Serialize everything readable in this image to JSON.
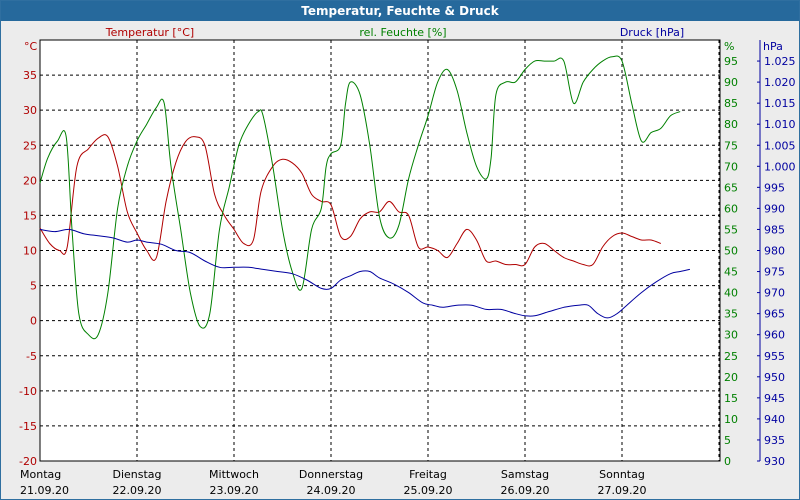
{
  "chart_data": {
    "type": "line",
    "title": "Temperatur, Feuchte & Druck",
    "x_categories": [
      {
        "day": "Montag",
        "date": "21.09.20"
      },
      {
        "day": "Dienstag",
        "date": "22.09.20"
      },
      {
        "day": "Mittwoch",
        "date": "23.09.20"
      },
      {
        "day": "Donnerstag",
        "date": "24.09.20"
      },
      {
        "day": "Freitag",
        "date": "25.09.20"
      },
      {
        "day": "Samstag",
        "date": "26.09.20"
      },
      {
        "day": "Sonntag",
        "date": "27.09.20"
      }
    ],
    "axes": {
      "temp": {
        "label": "Temperatur [°C]",
        "unit": "°C",
        "range": [
          -20,
          40
        ],
        "ticks": [
          -20,
          -15,
          -10,
          -5,
          0,
          5,
          10,
          15,
          20,
          25,
          30,
          35
        ],
        "color": "#b00000"
      },
      "hum": {
        "label": "rel. Feuchte [%]",
        "unit": "%",
        "range": [
          0,
          100
        ],
        "ticks": [
          0,
          5,
          10,
          15,
          20,
          25,
          30,
          35,
          40,
          45,
          50,
          55,
          60,
          65,
          70,
          75,
          80,
          85,
          90,
          95
        ],
        "color": "#008000"
      },
      "press": {
        "label": "Druck [hPa]",
        "unit": "hPa",
        "range": [
          930,
          1030
        ],
        "ticks": [
          930,
          935,
          940,
          945,
          950,
          955,
          960,
          965,
          970,
          975,
          980,
          985,
          990,
          995,
          1000,
          1005,
          1010,
          1015,
          1020,
          1025
        ],
        "color": "#0000a0"
      }
    },
    "grid": true,
    "series": [
      {
        "name": "Temperatur [°C]",
        "axis": "temp",
        "color": "#b00000",
        "points": [
          [
            0.0,
            13.2
          ],
          [
            0.1,
            11.0
          ],
          [
            0.2,
            10.0
          ],
          [
            0.28,
            10.5
          ],
          [
            0.38,
            22.0
          ],
          [
            0.5,
            24.5
          ],
          [
            0.6,
            26.0
          ],
          [
            0.7,
            26.2
          ],
          [
            0.8,
            22.0
          ],
          [
            0.9,
            15.5
          ],
          [
            1.0,
            12.5
          ],
          [
            1.1,
            10.0
          ],
          [
            1.2,
            9.0
          ],
          [
            1.3,
            17.0
          ],
          [
            1.4,
            22.5
          ],
          [
            1.5,
            25.5
          ],
          [
            1.6,
            26.2
          ],
          [
            1.7,
            25.0
          ],
          [
            1.8,
            18.0
          ],
          [
            1.9,
            15.0
          ],
          [
            2.0,
            13.0
          ],
          [
            2.1,
            11.0
          ],
          [
            2.2,
            11.5
          ],
          [
            2.28,
            18.5
          ],
          [
            2.4,
            22.0
          ],
          [
            2.5,
            23.0
          ],
          [
            2.6,
            22.5
          ],
          [
            2.7,
            21.0
          ],
          [
            2.8,
            18.0
          ],
          [
            2.9,
            17.0
          ],
          [
            3.0,
            16.5
          ],
          [
            3.1,
            12.0
          ],
          [
            3.2,
            12.0
          ],
          [
            3.3,
            14.5
          ],
          [
            3.4,
            15.5
          ],
          [
            3.5,
            15.5
          ],
          [
            3.6,
            17.0
          ],
          [
            3.7,
            15.5
          ],
          [
            3.8,
            15.0
          ],
          [
            3.9,
            10.5
          ],
          [
            4.0,
            10.5
          ],
          [
            4.1,
            10.0
          ],
          [
            4.2,
            9.0
          ],
          [
            4.3,
            11.0
          ],
          [
            4.4,
            13.0
          ],
          [
            4.5,
            11.5
          ],
          [
            4.6,
            8.5
          ],
          [
            4.7,
            8.5
          ],
          [
            4.8,
            8.0
          ],
          [
            4.9,
            8.0
          ],
          [
            5.0,
            8.0
          ],
          [
            5.1,
            10.5
          ],
          [
            5.2,
            11.0
          ],
          [
            5.3,
            10.0
          ],
          [
            5.4,
            9.0
          ],
          [
            5.5,
            8.5
          ],
          [
            5.6,
            8.0
          ],
          [
            5.7,
            8.0
          ],
          [
            5.8,
            10.5
          ],
          [
            5.9,
            12.0
          ],
          [
            6.0,
            12.5
          ],
          [
            6.1,
            12.0
          ],
          [
            6.2,
            11.5
          ],
          [
            6.3,
            11.5
          ],
          [
            6.4,
            11.0
          ]
        ]
      },
      {
        "name": "rel. Feuchte [%]",
        "axis": "hum",
        "color": "#008000",
        "points": [
          [
            0.0,
            66
          ],
          [
            0.08,
            72
          ],
          [
            0.18,
            76
          ],
          [
            0.27,
            77
          ],
          [
            0.33,
            55
          ],
          [
            0.4,
            35
          ],
          [
            0.5,
            30
          ],
          [
            0.6,
            30
          ],
          [
            0.7,
            40
          ],
          [
            0.8,
            60
          ],
          [
            0.9,
            70
          ],
          [
            1.0,
            76
          ],
          [
            1.1,
            80
          ],
          [
            1.2,
            84
          ],
          [
            1.28,
            85
          ],
          [
            1.35,
            70
          ],
          [
            1.45,
            55
          ],
          [
            1.55,
            40
          ],
          [
            1.65,
            32
          ],
          [
            1.75,
            35
          ],
          [
            1.85,
            55
          ],
          [
            1.95,
            65
          ],
          [
            2.05,
            75
          ],
          [
            2.15,
            80
          ],
          [
            2.25,
            83
          ],
          [
            2.3,
            82
          ],
          [
            2.4,
            70
          ],
          [
            2.5,
            55
          ],
          [
            2.6,
            45
          ],
          [
            2.7,
            41
          ],
          [
            2.8,
            55
          ],
          [
            2.9,
            60
          ],
          [
            2.95,
            70
          ],
          [
            3.0,
            73
          ],
          [
            3.1,
            75
          ],
          [
            3.15,
            85
          ],
          [
            3.2,
            90
          ],
          [
            3.3,
            87
          ],
          [
            3.4,
            75
          ],
          [
            3.5,
            58
          ],
          [
            3.6,
            53
          ],
          [
            3.7,
            56
          ],
          [
            3.8,
            67
          ],
          [
            3.9,
            75
          ],
          [
            4.0,
            82
          ],
          [
            4.1,
            90
          ],
          [
            4.2,
            93
          ],
          [
            4.3,
            88
          ],
          [
            4.4,
            78
          ],
          [
            4.5,
            70
          ],
          [
            4.6,
            67
          ],
          [
            4.65,
            72
          ],
          [
            4.7,
            87
          ],
          [
            4.8,
            90
          ],
          [
            4.9,
            90
          ],
          [
            5.0,
            93
          ],
          [
            5.1,
            95
          ],
          [
            5.2,
            95
          ],
          [
            5.3,
            95
          ],
          [
            5.4,
            95
          ],
          [
            5.5,
            85
          ],
          [
            5.6,
            90
          ],
          [
            5.7,
            93
          ],
          [
            5.8,
            95
          ],
          [
            5.9,
            96
          ],
          [
            6.0,
            95
          ],
          [
            6.1,
            85
          ],
          [
            6.2,
            76
          ],
          [
            6.3,
            78
          ],
          [
            6.4,
            79
          ],
          [
            6.5,
            82
          ],
          [
            6.6,
            83
          ]
        ]
      },
      {
        "name": "Druck [hPa]",
        "axis": "press",
        "color": "#0000a0",
        "points": [
          [
            0.0,
            985
          ],
          [
            0.15,
            984.5
          ],
          [
            0.3,
            985
          ],
          [
            0.45,
            984
          ],
          [
            0.6,
            983.5
          ],
          [
            0.75,
            983
          ],
          [
            0.9,
            982
          ],
          [
            1.0,
            982.5
          ],
          [
            1.1,
            982
          ],
          [
            1.25,
            981.5
          ],
          [
            1.4,
            980
          ],
          [
            1.55,
            979.5
          ],
          [
            1.7,
            977.5
          ],
          [
            1.85,
            976
          ],
          [
            2.0,
            976
          ],
          [
            2.15,
            976
          ],
          [
            2.3,
            975.5
          ],
          [
            2.45,
            975
          ],
          [
            2.6,
            974.5
          ],
          [
            2.75,
            973
          ],
          [
            2.9,
            971
          ],
          [
            3.0,
            971
          ],
          [
            3.1,
            973
          ],
          [
            3.2,
            974
          ],
          [
            3.3,
            975
          ],
          [
            3.4,
            975
          ],
          [
            3.5,
            973.5
          ],
          [
            3.65,
            972
          ],
          [
            3.8,
            970
          ],
          [
            3.95,
            967.5
          ],
          [
            4.05,
            967
          ],
          [
            4.15,
            966.5
          ],
          [
            4.3,
            967
          ],
          [
            4.45,
            967
          ],
          [
            4.6,
            966
          ],
          [
            4.75,
            966
          ],
          [
            4.9,
            965
          ],
          [
            5.0,
            964.5
          ],
          [
            5.1,
            964.5
          ],
          [
            5.25,
            965.5
          ],
          [
            5.4,
            966.5
          ],
          [
            5.55,
            967
          ],
          [
            5.65,
            967
          ],
          [
            5.75,
            965
          ],
          [
            5.85,
            964
          ],
          [
            5.95,
            965
          ],
          [
            6.05,
            967
          ],
          [
            6.2,
            970
          ],
          [
            6.35,
            972.5
          ],
          [
            6.5,
            974.5
          ],
          [
            6.6,
            975
          ],
          [
            6.7,
            975.5
          ]
        ]
      }
    ]
  }
}
